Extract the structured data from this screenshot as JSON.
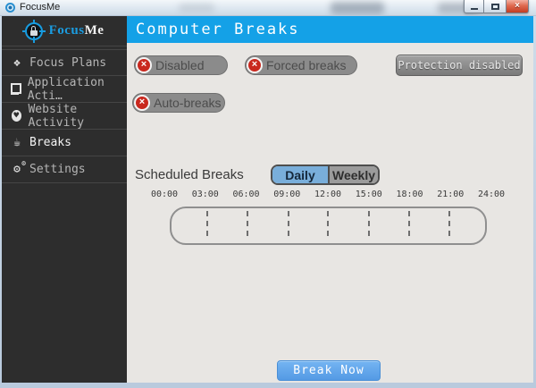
{
  "window": {
    "title": "FocusMe",
    "close_glyph": "×"
  },
  "colors": {
    "header_blue": "#14a1e7",
    "accent_blue": "#1b9ce0",
    "daily_tab_blue": "#79aeda",
    "break_now_blue": "#5aa2ec",
    "status_red": "#c9281e",
    "sidebar_bg": "#2d2d2d",
    "main_bg": "#e8e6e3"
  },
  "sidebar": {
    "logo": {
      "part1": "Focus",
      "part2": "Me"
    },
    "items": [
      {
        "label": "Focus Plans",
        "icon_glyph": "❖"
      },
      {
        "label": "Application Acti…",
        "icon_glyph": ""
      },
      {
        "label": "Website Activity",
        "icon_glyph": "♥"
      },
      {
        "label": "Breaks",
        "icon_glyph": "☕"
      },
      {
        "label": "Settings",
        "icon_glyph": "⚙"
      }
    ]
  },
  "main": {
    "header_title": "Computer Breaks",
    "status_pills": [
      {
        "label": "Disabled",
        "state_glyph": "×"
      },
      {
        "label": "Forced breaks",
        "state_glyph": "×"
      },
      {
        "label": "Auto-breaks",
        "state_glyph": "×"
      }
    ],
    "protection_button_label": "Protection disabled",
    "scheduled": {
      "title": "Scheduled Breaks",
      "tabs": [
        {
          "label": "Daily",
          "active": true
        },
        {
          "label": "Weekly",
          "active": false
        }
      ],
      "timeline_labels": [
        "00:00",
        "03:00",
        "06:00",
        "09:00",
        "12:00",
        "15:00",
        "18:00",
        "21:00",
        "24:00"
      ]
    },
    "break_now_label": "Break Now"
  }
}
